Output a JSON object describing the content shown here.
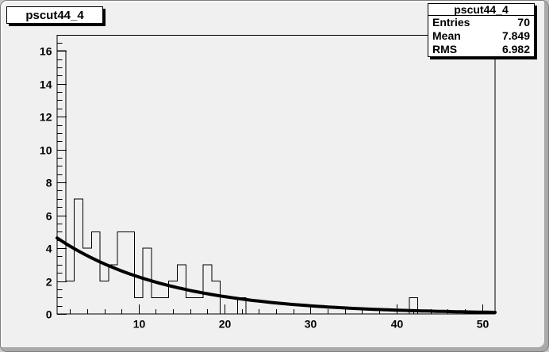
{
  "title_box": {
    "text": "pscut44_4"
  },
  "stats_box": {
    "title": "pscut44_4",
    "rows": [
      {
        "label": "Entries",
        "value": "70"
      },
      {
        "label": "Mean",
        "value": "7.849"
      },
      {
        "label": "RMS",
        "value": "6.982"
      }
    ]
  },
  "chart_data": {
    "type": "bar",
    "title": "pscut44_4",
    "style": "root-histogram-outline",
    "entries": 70,
    "mean": 7.849,
    "rms": 6.982,
    "x_range": [
      0.5,
      51.5
    ],
    "y_range": [
      0,
      16.95
    ],
    "bin_width": 1,
    "first_bin_center": 1,
    "values": [
      16,
      2,
      7,
      4,
      5,
      2,
      3,
      5,
      5,
      1,
      4,
      1,
      1,
      2,
      3,
      1,
      1,
      3,
      2,
      0,
      0,
      1,
      0,
      0,
      0,
      0,
      0,
      0,
      0,
      0,
      0,
      0,
      0,
      0,
      0,
      0,
      0,
      0,
      0,
      0,
      0,
      1,
      0,
      0,
      0,
      0,
      0,
      0,
      0,
      0,
      0
    ],
    "x_ticks_major": [
      10,
      20,
      30,
      40,
      50
    ],
    "x_tick_labels": [
      "10",
      "20",
      "30",
      "40",
      "50"
    ],
    "x_tick_minor_step": 2,
    "y_ticks_major": [
      0,
      2,
      4,
      6,
      8,
      10,
      12,
      14,
      16
    ],
    "y_tick_labels": [
      "0",
      "2",
      "4",
      "6",
      "8",
      "10",
      "12",
      "14",
      "16"
    ],
    "y_tick_minor_step": 0.5,
    "grid": false,
    "legend": null,
    "fit_curve": {
      "model": "A*exp(-x/tau)",
      "A": 4.8,
      "tau": 13.2,
      "x_start": 0.5,
      "x_end": 51.5
    },
    "colors": {
      "line": "#000000",
      "fit": "#000000",
      "background": "#f0f0f0",
      "pave_fill": "#ffffff",
      "text": "#000000"
    }
  }
}
